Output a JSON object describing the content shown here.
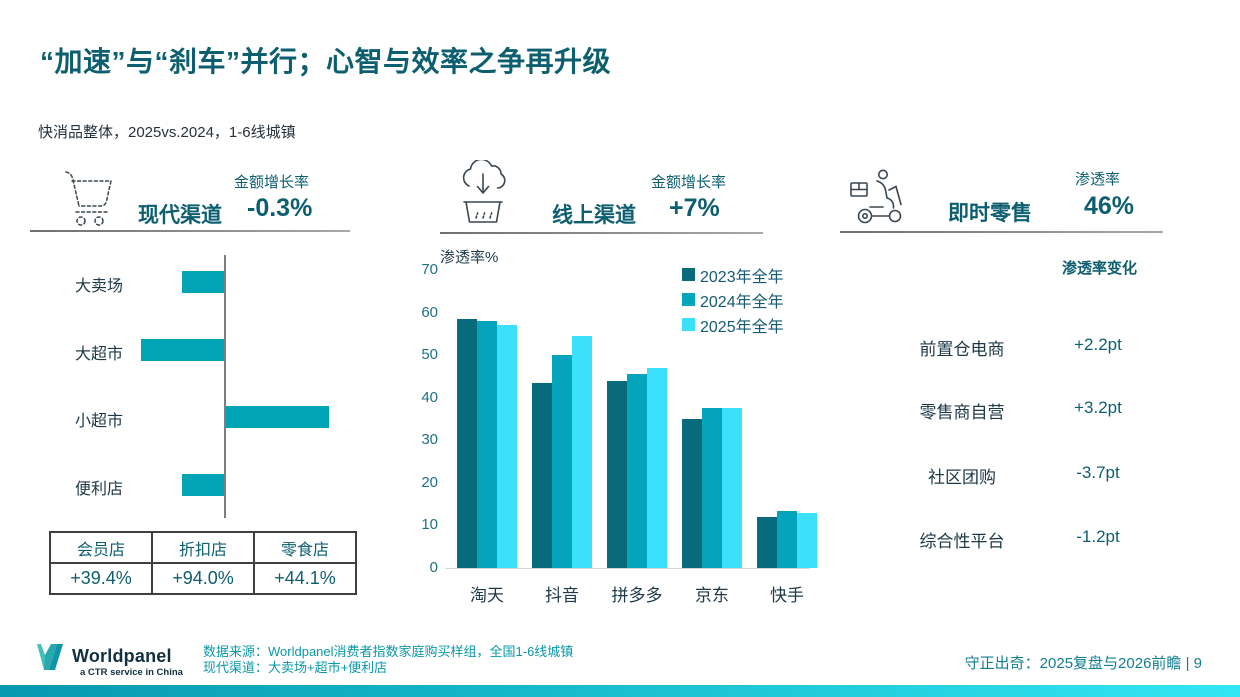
{
  "slide": {
    "title": "“加速”与“刹车”并行；心智与效率之争再升级",
    "subtitle": "快消品整体，2025vs.2024，1-6线城镇",
    "page_caption": "守正出奇：2025复盘与2026前瞻 | 9"
  },
  "colors": {
    "heading_teal": "#0d5f6f",
    "modern_bar": "#00a4b4",
    "series_2023": "#086b7c",
    "series_2024": "#04a5bc",
    "series_2025": "#3be0fb",
    "footer_teal": "#0b97a8",
    "bottom_bar_gradient": [
      "#0798b0",
      "#33e6f3"
    ]
  },
  "sections": {
    "modern": {
      "name": "现代渠道",
      "icon": "shopping-cart-icon",
      "metric_label": "金额增长率",
      "metric_value": "-0.3%"
    },
    "online": {
      "name": "线上渠道",
      "icon": "cloud-download-basket-icon",
      "metric_label": "金额增长率",
      "metric_value": "+7%",
      "axis_title": "渗透率%"
    },
    "instant": {
      "name": "即时零售",
      "icon": "delivery-scooter-icon",
      "metric_label": "渗透率",
      "metric_value": "46%",
      "list_header": "渗透率变化",
      "items": [
        {
          "label": "前置仓电商",
          "value": "+2.2pt"
        },
        {
          "label": "零售商自营",
          "value": "+3.2pt"
        },
        {
          "label": "社区团购",
          "value": "-3.7pt"
        },
        {
          "label": "综合性平台",
          "value": "-1.2pt"
        }
      ]
    }
  },
  "modern_table": {
    "headers": [
      "会员店",
      "折扣店",
      "零食店"
    ],
    "values": [
      "+39.4%",
      "+94.0%",
      "+44.1%"
    ]
  },
  "chart_data": [
    {
      "type": "bar",
      "orientation": "horizontal",
      "title": "现代渠道金额增长率（未标注刻度，按条形相对长度估读）",
      "categories": [
        "大卖场",
        "大超市",
        "小超市",
        "便利店"
      ],
      "values": [
        -4.1,
        -8.1,
        10,
        -4.1
      ],
      "xlim": [
        -9,
        11
      ],
      "grid": false,
      "bar_color": "#00a4b4"
    },
    {
      "type": "bar",
      "orientation": "vertical",
      "title": "线上渠道渗透率%",
      "ylabel": "渗透率%",
      "categories": [
        "淘天",
        "抖音",
        "拼多多",
        "京东",
        "快手"
      ],
      "series": [
        {
          "name": "2023年全年",
          "color": "#086b7c",
          "values": [
            58.5,
            43.5,
            44,
            35,
            12
          ]
        },
        {
          "name": "2024年全年",
          "color": "#04a5bc",
          "values": [
            58,
            50,
            45.5,
            37.5,
            13.5
          ]
        },
        {
          "name": "2025年全年",
          "color": "#3be0fb",
          "values": [
            57,
            54.5,
            47,
            37.5,
            13
          ]
        }
      ],
      "ylim": [
        0,
        70
      ],
      "yticks": [
        0,
        10,
        20,
        30,
        40,
        50,
        60,
        70
      ],
      "grid": false,
      "legend_position": "top-right"
    }
  ],
  "footer": {
    "logo_name": "Worldpanel",
    "logo_tagline": "a CTR service in China",
    "source_line1": "数据来源：Worldpanel消费者指数家庭购买样组，全国1-6线城镇",
    "source_line2": "现代渠道：大卖场+超市+便利店"
  }
}
